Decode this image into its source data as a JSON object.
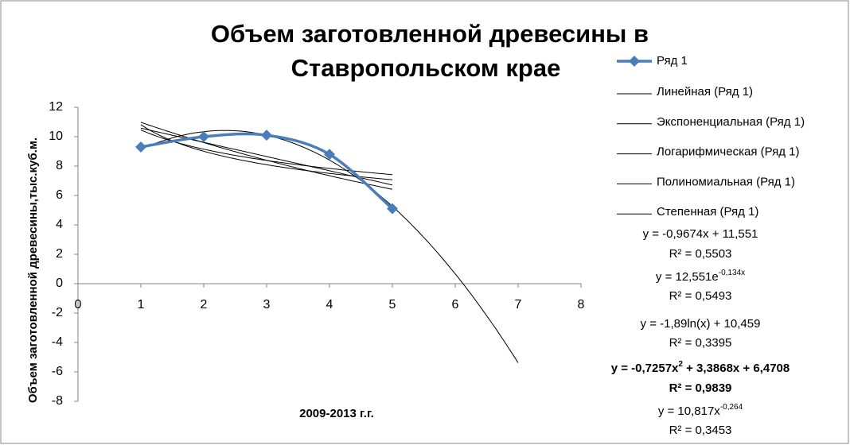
{
  "chart_data": {
    "type": "line",
    "title": [
      "Объем заготовленной древесины в",
      "Ставропольском крае"
    ],
    "x_label": "2009-2013 г.г.",
    "y_label": "Объем заготовленной  древесины,тыс.куб.м.",
    "x": [
      1,
      2,
      3,
      4,
      5
    ],
    "series": [
      {
        "name": "Ряд 1",
        "color": "#4a7ebb",
        "values": [
          9.3,
          10.0,
          10.1,
          8.8,
          5.1
        ]
      }
    ],
    "xlim": [
      0,
      8
    ],
    "xticks": [
      0,
      1,
      2,
      3,
      4,
      5,
      6,
      7,
      8
    ],
    "ylim": [
      -8,
      12
    ],
    "yticks": [
      -8,
      -6,
      -4,
      -2,
      0,
      2,
      4,
      6,
      8,
      10,
      12
    ],
    "grid": false,
    "legend": "right",
    "trendlines": [
      {
        "name": "Линейная (Ряд 1)",
        "kind": "linear",
        "coefficients": [
          -0.9674,
          11.551
        ],
        "range": [
          1,
          5
        ],
        "equation": [
          "y = -0,9674x + 11,551"
        ],
        "r2": "R² = 0,5503",
        "bold": false
      },
      {
        "name": "Экспоненциальная (Ряд 1)",
        "kind": "exponential",
        "coefficients": [
          12.551,
          -0.134
        ],
        "range": [
          1,
          5
        ],
        "equation": [
          "y = 12,551e",
          "-0,134x"
        ],
        "r2": "R² = 0,5493",
        "bold": false
      },
      {
        "name": "Логарифмическая (Ряд 1)",
        "kind": "logarithmic",
        "coefficients": [
          -1.89,
          10.459
        ],
        "range": [
          1,
          5
        ],
        "equation": [
          "y = -1,89ln(x) + 10,459"
        ],
        "r2": "R² = 0,3395",
        "bold": false
      },
      {
        "name": "Полиномиальная (Ряд 1)",
        "kind": "polynomial",
        "coefficients": [
          -0.7257,
          3.3868,
          6.4708
        ],
        "range": [
          1,
          7
        ],
        "equation": [
          "y = -0,7257x",
          "2",
          " + 3,3868x + 6,4708"
        ],
        "r2": "R² = 0,9839",
        "bold": true
      },
      {
        "name": "Степенная (Ряд 1)",
        "kind": "power",
        "coefficients": [
          10.817,
          -0.264
        ],
        "range": [
          1,
          5
        ],
        "equation": [
          "y = 10,817x",
          "-0,264"
        ],
        "r2": "R² = 0,3453",
        "bold": false
      }
    ]
  }
}
